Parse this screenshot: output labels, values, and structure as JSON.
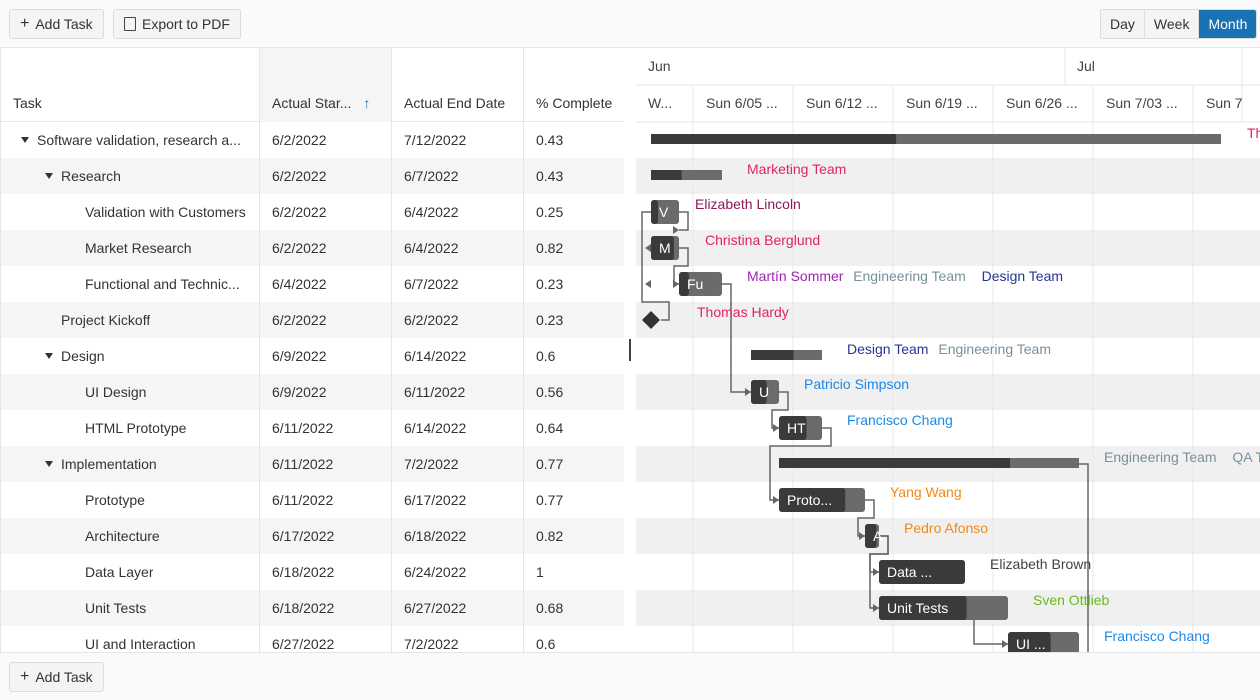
{
  "toolbar": {
    "add_task": "Add Task",
    "export_pdf": "Export to PDF",
    "views": [
      "Day",
      "Week",
      "Month"
    ],
    "active_view": "Month"
  },
  "grid": {
    "columns": [
      "Task",
      "Actual Star...",
      "Actual End Date",
      "% Complete"
    ],
    "sort_indicator": "↑",
    "rows": [
      {
        "task": "Software validation, research a...",
        "start": "6/2/2022",
        "end": "7/12/2022",
        "pct": "0.43",
        "level": 0,
        "expander": true
      },
      {
        "task": "Research",
        "start": "6/2/2022",
        "end": "6/7/2022",
        "pct": "0.43",
        "level": 1,
        "expander": true
      },
      {
        "task": "Validation with Customers",
        "start": "6/2/2022",
        "end": "6/4/2022",
        "pct": "0.25",
        "level": 2,
        "expander": false
      },
      {
        "task": "Market Research",
        "start": "6/2/2022",
        "end": "6/4/2022",
        "pct": "0.82",
        "level": 2,
        "expander": false
      },
      {
        "task": "Functional and Technic...",
        "start": "6/4/2022",
        "end": "6/7/2022",
        "pct": "0.23",
        "level": 2,
        "expander": false
      },
      {
        "task": "Project Kickoff",
        "start": "6/2/2022",
        "end": "6/2/2022",
        "pct": "0.23",
        "level": 1,
        "expander": false
      },
      {
        "task": "Design",
        "start": "6/9/2022",
        "end": "6/14/2022",
        "pct": "0.6",
        "level": 1,
        "expander": true
      },
      {
        "task": "UI Design",
        "start": "6/9/2022",
        "end": "6/11/2022",
        "pct": "0.56",
        "level": 2,
        "expander": false
      },
      {
        "task": "HTML Prototype",
        "start": "6/11/2022",
        "end": "6/14/2022",
        "pct": "0.64",
        "level": 2,
        "expander": false
      },
      {
        "task": "Implementation",
        "start": "6/11/2022",
        "end": "7/2/2022",
        "pct": "0.77",
        "level": 1,
        "expander": true
      },
      {
        "task": "Prototype",
        "start": "6/11/2022",
        "end": "6/17/2022",
        "pct": "0.77",
        "level": 2,
        "expander": false
      },
      {
        "task": "Architecture",
        "start": "6/17/2022",
        "end": "6/18/2022",
        "pct": "0.82",
        "level": 2,
        "expander": false
      },
      {
        "task": "Data Layer",
        "start": "6/18/2022",
        "end": "6/24/2022",
        "pct": "1",
        "level": 2,
        "expander": false
      },
      {
        "task": "Unit Tests",
        "start": "6/18/2022",
        "end": "6/27/2022",
        "pct": "0.68",
        "level": 2,
        "expander": false
      },
      {
        "task": "UI and Interaction",
        "start": "6/27/2022",
        "end": "7/2/2022",
        "pct": "0.6",
        "level": 2,
        "expander": false
      }
    ]
  },
  "timeline": {
    "months": [
      "Jun",
      "Jul"
    ],
    "weeks": [
      "W...",
      "Sun 6/05 ...",
      "Sun 6/12 ...",
      "Sun 6/19 ...",
      "Sun 6/26 ...",
      "Sun 7/03 ...",
      "Sun 7"
    ],
    "bars": [
      {
        "row": 0,
        "type": "summary",
        "label": "",
        "pct": 0.43,
        "resources": [
          {
            "name": "Th",
            "color": "#e0245e"
          }
        ]
      },
      {
        "row": 1,
        "type": "summary",
        "label": "",
        "pct": 0.43,
        "resources": [
          {
            "name": "Marketing Team",
            "color": "#e0245e"
          }
        ]
      },
      {
        "row": 2,
        "type": "task",
        "label": "V",
        "pct": 0.25,
        "resources": [
          {
            "name": "Elizabeth Lincoln",
            "color": "#8b1a5b"
          }
        ]
      },
      {
        "row": 3,
        "type": "task",
        "label": "M",
        "pct": 0.82,
        "resources": [
          {
            "name": "Christina Berglund",
            "color": "#e0245e"
          }
        ]
      },
      {
        "row": 4,
        "type": "task",
        "label": "Fu",
        "pct": 0.23,
        "resources": [
          {
            "name": "Martín Sommer",
            "color": "#9c27b0"
          },
          {
            "name": "Engineering Team",
            "color": "#78909c"
          },
          {
            "name": "Design Team",
            "color": "#283593"
          }
        ]
      },
      {
        "row": 5,
        "type": "milestone",
        "label": "",
        "pct": 0.23,
        "resources": [
          {
            "name": "Thomas Hardy",
            "color": "#e0245e"
          }
        ]
      },
      {
        "row": 6,
        "type": "summary",
        "label": "",
        "pct": 0.6,
        "resources": [
          {
            "name": "Design Team",
            "color": "#283593"
          },
          {
            "name": "Engineering Team",
            "color": "#78909c"
          }
        ]
      },
      {
        "row": 7,
        "type": "task",
        "label": "U",
        "pct": 0.56,
        "resources": [
          {
            "name": "Patricio Simpson",
            "color": "#1e88e5"
          }
        ]
      },
      {
        "row": 8,
        "type": "task",
        "label": "HT",
        "pct": 0.64,
        "resources": [
          {
            "name": "Francisco Chang",
            "color": "#1e88e5"
          }
        ]
      },
      {
        "row": 9,
        "type": "summary",
        "label": "",
        "pct": 0.77,
        "resources": [
          {
            "name": "Engineering Team",
            "color": "#78909c"
          },
          {
            "name": "QA Te",
            "color": "#78909c"
          }
        ]
      },
      {
        "row": 10,
        "type": "task",
        "label": "Proto...",
        "pct": 0.77,
        "resources": [
          {
            "name": "Yang Wang",
            "color": "#ef8a17"
          }
        ]
      },
      {
        "row": 11,
        "type": "task",
        "label": "A",
        "pct": 0.82,
        "resources": [
          {
            "name": "Pedro Afonso",
            "color": "#ef8a17"
          }
        ]
      },
      {
        "row": 12,
        "type": "task",
        "label": "Data ...",
        "pct": 1,
        "resources": [
          {
            "name": "Elizabeth Brown",
            "color": "#424242"
          }
        ]
      },
      {
        "row": 13,
        "type": "task",
        "label": "Unit Tests",
        "pct": 0.68,
        "resources": [
          {
            "name": "Sven Ottlieb",
            "color": "#66bb1a"
          }
        ]
      },
      {
        "row": 14,
        "type": "task",
        "label": "UI ...",
        "pct": 0.6,
        "resources": [
          {
            "name": "Francisco Chang",
            "color": "#1e88e5"
          }
        ]
      }
    ]
  }
}
